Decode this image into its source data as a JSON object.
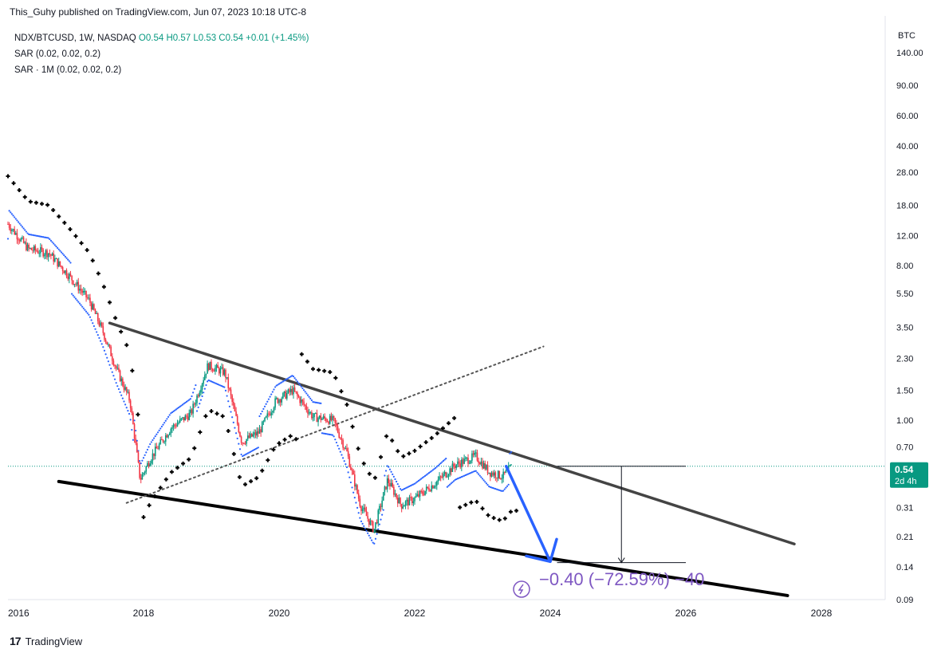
{
  "header": {
    "text": "This_Guhy published on TradingView.com, Jun 07, 2023 10:18 UTC-8"
  },
  "legend": {
    "symbol": "NDX/BTCUSD, 1W, NASDAQ",
    "ohlc": "O0.54  H0.57  L0.53  C0.54  +0.01 (+1.45%)",
    "ind1": "SAR (0.02, 0.02, 0.2)",
    "ind2": "SAR · 1M (0.02, 0.02, 0.2)"
  },
  "footer": {
    "logo": "17",
    "brand": "TradingView"
  },
  "colors": {
    "up": "#089981",
    "down": "#f23645",
    "sar_weekly": "#2962ff",
    "sar_monthly": "#000000",
    "trend": "#444444",
    "arrow": "#2962ff",
    "measure": "#7e57c2",
    "price_badge": "#089981"
  },
  "chart_data": {
    "type": "candlestick",
    "title": "",
    "currency_label": "BTC",
    "y_scale": "log",
    "y_ticks": [
      {
        "label": "140.00",
        "v": 140
      },
      {
        "label": "90.00",
        "v": 90
      },
      {
        "label": "60.00",
        "v": 60
      },
      {
        "label": "40.00",
        "v": 40
      },
      {
        "label": "28.00",
        "v": 28
      },
      {
        "label": "18.00",
        "v": 18
      },
      {
        "label": "12.00",
        "v": 12
      },
      {
        "label": "8.00",
        "v": 8
      },
      {
        "label": "5.50",
        "v": 5.5
      },
      {
        "label": "3.50",
        "v": 3.5
      },
      {
        "label": "2.30",
        "v": 2.3
      },
      {
        "label": "1.50",
        "v": 1.5
      },
      {
        "label": "1.00",
        "v": 1.0
      },
      {
        "label": "0.70",
        "v": 0.7
      },
      {
        "label": "0.31",
        "v": 0.31
      },
      {
        "label": "0.21",
        "v": 0.21
      },
      {
        "label": "0.14",
        "v": 0.14
      },
      {
        "label": "0.09",
        "v": 0.09
      }
    ],
    "x_ticks": [
      {
        "label": "2016",
        "v": 2016
      },
      {
        "label": "2018",
        "v": 2018
      },
      {
        "label": "2020",
        "v": 2020
      },
      {
        "label": "2022",
        "v": 2022
      },
      {
        "label": "2024",
        "v": 2024
      },
      {
        "label": "2026",
        "v": 2026
      },
      {
        "label": "2028",
        "v": 2028
      }
    ],
    "price_series": [
      {
        "x": 2016.0,
        "y": 14.0
      },
      {
        "x": 2016.3,
        "y": 10.0
      },
      {
        "x": 2016.6,
        "y": 9.5
      },
      {
        "x": 2016.9,
        "y": 7.0
      },
      {
        "x": 2017.2,
        "y": 5.0
      },
      {
        "x": 2017.4,
        "y": 3.3
      },
      {
        "x": 2017.6,
        "y": 2.0
      },
      {
        "x": 2017.8,
        "y": 1.3
      },
      {
        "x": 2017.95,
        "y": 0.45
      },
      {
        "x": 2018.1,
        "y": 0.6
      },
      {
        "x": 2018.4,
        "y": 0.9
      },
      {
        "x": 2018.7,
        "y": 1.1
      },
      {
        "x": 2018.95,
        "y": 2.1
      },
      {
        "x": 2019.2,
        "y": 1.9
      },
      {
        "x": 2019.45,
        "y": 0.75
      },
      {
        "x": 2019.7,
        "y": 0.85
      },
      {
        "x": 2019.95,
        "y": 1.3
      },
      {
        "x": 2020.2,
        "y": 1.5
      },
      {
        "x": 2020.5,
        "y": 1.05
      },
      {
        "x": 2020.8,
        "y": 1.0
      },
      {
        "x": 2021.0,
        "y": 0.65
      },
      {
        "x": 2021.2,
        "y": 0.32
      },
      {
        "x": 2021.4,
        "y": 0.23
      },
      {
        "x": 2021.6,
        "y": 0.45
      },
      {
        "x": 2021.8,
        "y": 0.32
      },
      {
        "x": 2022.0,
        "y": 0.35
      },
      {
        "x": 2022.3,
        "y": 0.43
      },
      {
        "x": 2022.6,
        "y": 0.55
      },
      {
        "x": 2022.9,
        "y": 0.62
      },
      {
        "x": 2023.1,
        "y": 0.5
      },
      {
        "x": 2023.3,
        "y": 0.47
      },
      {
        "x": 2023.43,
        "y": 0.54
      }
    ],
    "current_price": {
      "value": 0.54,
      "label": "0.54",
      "countdown": "2d 4h"
    },
    "trendlines": [
      {
        "name": "upper",
        "from": {
          "x": 2017.5,
          "y": 3.7
        },
        "to": {
          "x": 2027.6,
          "y": 0.19
        },
        "style": "solid"
      },
      {
        "name": "lower",
        "from": {
          "x": 2016.75,
          "y": 0.44
        },
        "to": {
          "x": 2027.5,
          "y": 0.095
        },
        "style": "solid"
      },
      {
        "name": "dotted-rising",
        "from": {
          "x": 2017.75,
          "y": 0.33
        },
        "to": {
          "x": 2023.9,
          "y": 2.7
        },
        "style": "dotted"
      }
    ],
    "projection_arrow": {
      "from": {
        "x": 2023.35,
        "y": 0.54
      },
      "to": {
        "x": 2024.0,
        "y": 0.15
      }
    },
    "measure": {
      "from_x": 2024.1,
      "to_x": 2026.0,
      "top": 0.54,
      "bottom": 0.148,
      "label": "−0.40 (−72.59%) −40"
    }
  }
}
